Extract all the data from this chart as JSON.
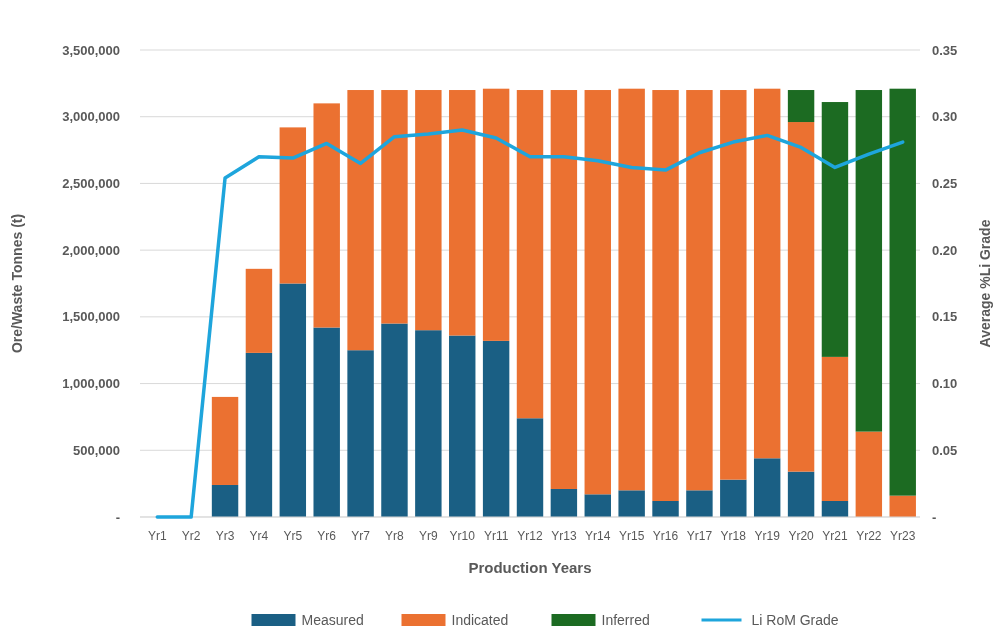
{
  "chart_data": {
    "type": "bar",
    "stacked": true,
    "xlabel": "Production Years",
    "ylabel": "Ore/Waste Tonnes (t)",
    "y2label": "Average %Li Grade",
    "categories": [
      "Yr1",
      "Yr2",
      "Yr3",
      "Yr4",
      "Yr5",
      "Yr6",
      "Yr7",
      "Yr8",
      "Yr9",
      "Yr10",
      "Yr11",
      "Yr12",
      "Yr13",
      "Yr14",
      "Yr15",
      "Yr16",
      "Yr17",
      "Yr18",
      "Yr19",
      "Yr20",
      "Yr21",
      "Yr22",
      "Yr23"
    ],
    "series": [
      {
        "name": "Measured",
        "color": "#1a5f84",
        "values": [
          0,
          0,
          240000,
          1230000,
          1750000,
          1420000,
          1250000,
          1450000,
          1400000,
          1360000,
          1320000,
          740000,
          210000,
          170000,
          200000,
          120000,
          200000,
          280000,
          440000,
          340000,
          120000,
          0,
          0
        ]
      },
      {
        "name": "Indicated",
        "color": "#eb7131",
        "values": [
          0,
          0,
          660000,
          630000,
          1170000,
          1680000,
          1950000,
          1750000,
          1800000,
          1840000,
          1890000,
          2460000,
          2990000,
          3030000,
          3010000,
          3080000,
          3000000,
          2920000,
          2770000,
          2620000,
          1080000,
          640000,
          160000
        ]
      },
      {
        "name": "Inferred",
        "color": "#1c6b22",
        "values": [
          0,
          0,
          0,
          0,
          0,
          0,
          0,
          0,
          0,
          0,
          0,
          0,
          0,
          0,
          0,
          0,
          0,
          0,
          0,
          240000,
          1910000,
          2560000,
          3050000
        ]
      },
      {
        "name": "Li RoM Grade",
        "type": "line",
        "axis": "y2",
        "color": "#1ea5dc",
        "values": [
          0,
          0,
          0.254,
          0.27,
          0.269,
          0.28,
          0.265,
          0.285,
          0.287,
          0.29,
          0.284,
          0.27,
          0.27,
          0.267,
          0.262,
          0.26,
          0.273,
          0.281,
          0.286,
          0.277,
          0.262,
          0.272,
          0.281
        ]
      }
    ],
    "ylim": [
      0,
      3500000
    ],
    "yticks": [
      {
        "value": 0,
        "label": "-"
      },
      {
        "value": 500000,
        "label": "500,000"
      },
      {
        "value": 1000000,
        "label": "1,000,000"
      },
      {
        "value": 1500000,
        "label": "1,500,000"
      },
      {
        "value": 2000000,
        "label": "2,000,000"
      },
      {
        "value": 2500000,
        "label": "2,500,000"
      },
      {
        "value": 3000000,
        "label": "3,000,000"
      },
      {
        "value": 3500000,
        "label": "3,500,000"
      }
    ],
    "y2lim": [
      0,
      0.35
    ],
    "y2ticks": [
      {
        "value": 0,
        "label": "-"
      },
      {
        "value": 0.05,
        "label": "0.05"
      },
      {
        "value": 0.1,
        "label": "0.10"
      },
      {
        "value": 0.15,
        "label": "0.15"
      },
      {
        "value": 0.2,
        "label": "0.20"
      },
      {
        "value": 0.25,
        "label": "0.25"
      },
      {
        "value": 0.3,
        "label": "0.30"
      },
      {
        "value": 0.35,
        "label": "0.35"
      }
    ],
    "grid": "y",
    "legend": "bottom"
  }
}
